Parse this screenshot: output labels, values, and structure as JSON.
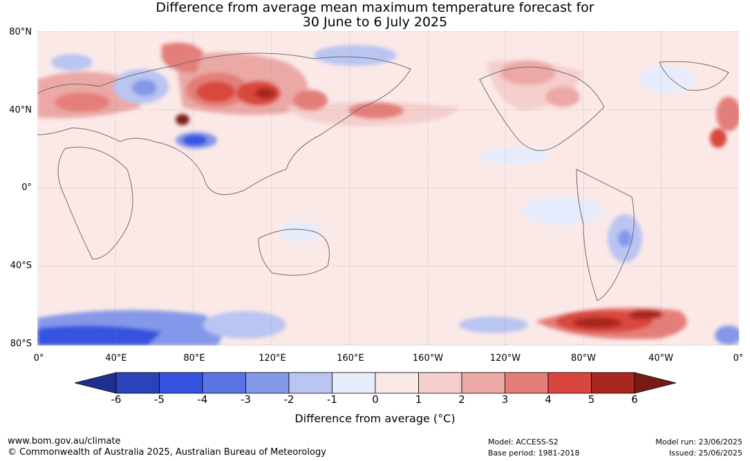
{
  "title_line1": "Difference from average mean maximum temperature forecast for",
  "title_line2": "30 June to 6 July 2025",
  "lat_labels": [
    "80°N",
    "40°N",
    "0°",
    "40°S",
    "80°S"
  ],
  "lon_labels": [
    "0°",
    "40°E",
    "80°E",
    "120°E",
    "160°E",
    "160°W",
    "120°W",
    "80°W",
    "40°W",
    "0°"
  ],
  "colorbar": {
    "ticks": [
      "-6",
      "-5",
      "-4",
      "-3",
      "-2",
      "-1",
      "0",
      "1",
      "2",
      "3",
      "4",
      "5",
      "6"
    ],
    "colors": [
      "#1f2f8f",
      "#2a43b8",
      "#3552e0",
      "#5a74e3",
      "#8498e9",
      "#bac5f2",
      "#e6ecfb",
      "#fbe9e8",
      "#f4cfcd",
      "#eca8a5",
      "#e47e78",
      "#d9463e",
      "#a8271f",
      "#7a1a14"
    ],
    "label": "Difference from average (°C)"
  },
  "footer": {
    "url": "www.bom.gov.au/climate",
    "copyright": "© Commonwealth of Australia 2025, Australian Bureau of Meteorology",
    "model": "Model: ACCESS-S2",
    "base_period": "Base period: 1981-2018",
    "model_run": "Model run: 23/06/2025",
    "issued": "Issued: 25/06/2025"
  }
}
